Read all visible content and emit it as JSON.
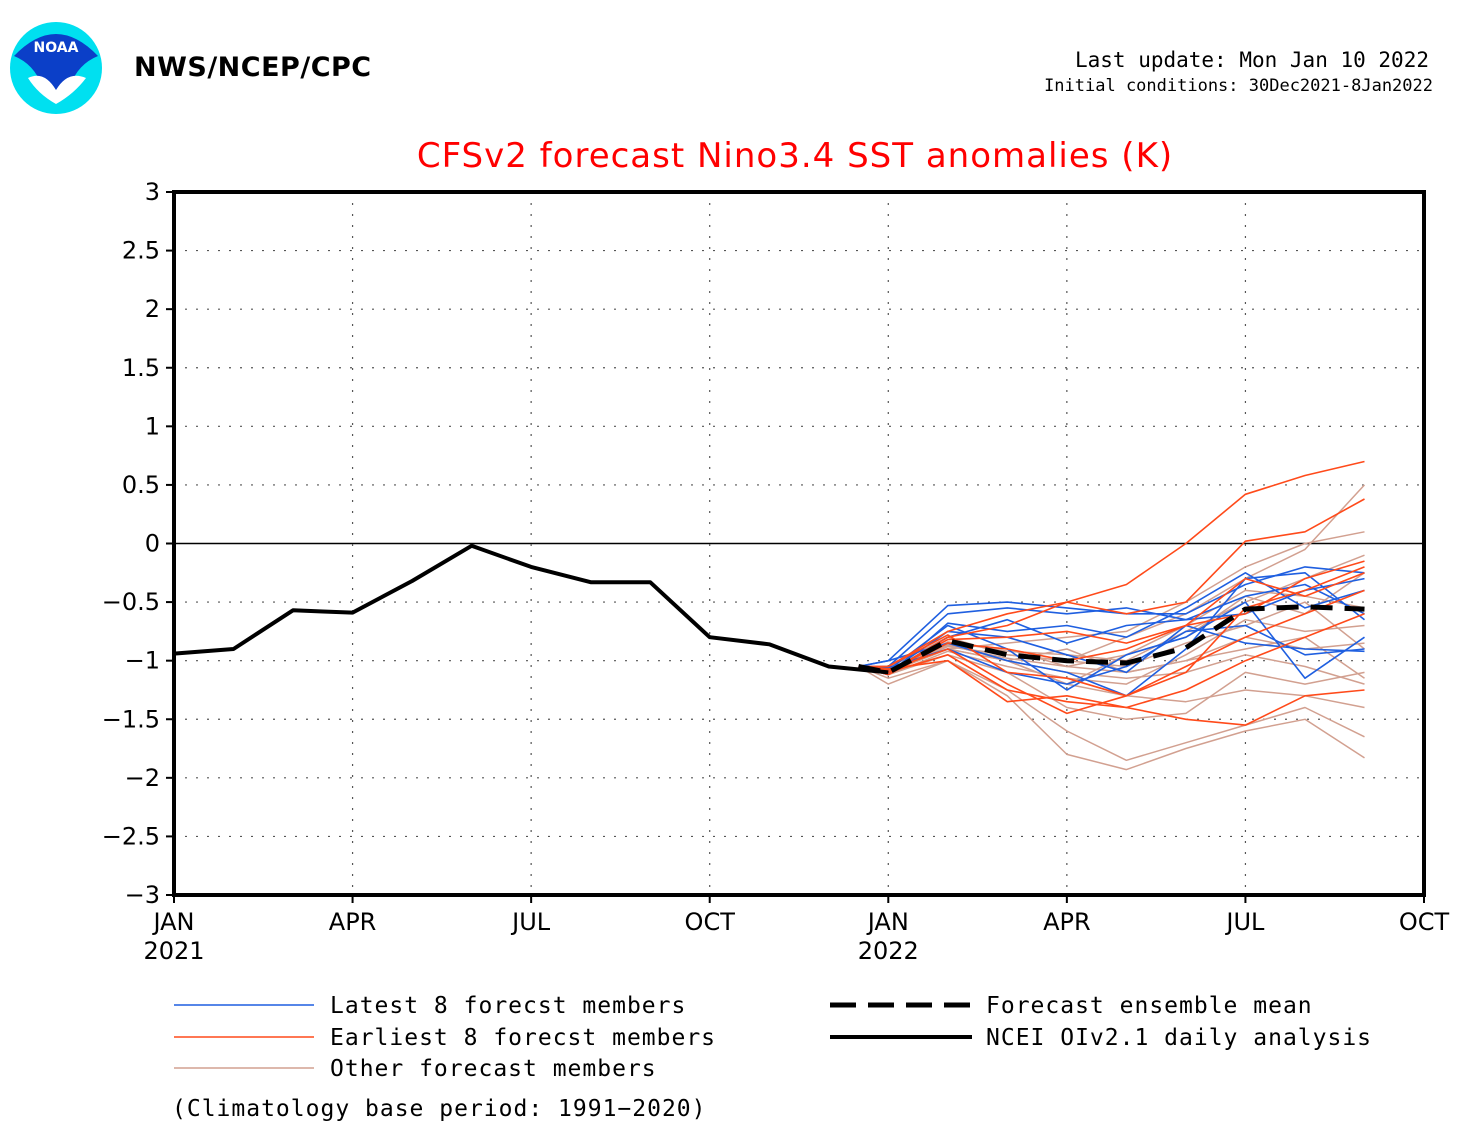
{
  "header": {
    "org": "NWS/NCEP/CPC",
    "last_update": "Last update: Mon Jan 10 2022",
    "initial_conditions": "Initial conditions: 30Dec2021-8Jan2022",
    "logo_text": "NOAA"
  },
  "chart_data": {
    "type": "line",
    "title": "CFSv2 forecast Nino3.4 SST anomalies (K)",
    "ylim": [
      -3,
      3
    ],
    "yticks": [
      3,
      2.5,
      2,
      1.5,
      1,
      0.5,
      0,
      -0.5,
      -1,
      -1.5,
      -2,
      -2.5,
      -3
    ],
    "ytick_labels": [
      "3",
      "2.5",
      "2",
      "1.5",
      "1",
      "0.5",
      "0",
      "−0.5",
      "−1",
      "−1.5",
      "−2",
      "−2.5",
      "−3"
    ],
    "xlim": [
      0,
      21
    ],
    "xticks": [
      {
        "x": 0,
        "label": "JAN",
        "sub": "2021"
      },
      {
        "x": 3,
        "label": "APR",
        "sub": ""
      },
      {
        "x": 6,
        "label": "JUL",
        "sub": ""
      },
      {
        "x": 9,
        "label": "OCT",
        "sub": ""
      },
      {
        "x": 12,
        "label": "JAN",
        "sub": "2022"
      },
      {
        "x": 15,
        "label": "APR",
        "sub": ""
      },
      {
        "x": 18,
        "label": "JUL",
        "sub": ""
      },
      {
        "x": 21,
        "label": "OCT",
        "sub": ""
      }
    ],
    "grid": true,
    "zero_line": true,
    "observed": {
      "name": "NCEI OIv2.1 daily analysis",
      "color": "#000000",
      "x": [
        0,
        1,
        2,
        2.5,
        3,
        4,
        5,
        6,
        7,
        8,
        9,
        10,
        11,
        12
      ],
      "y": [
        -0.94,
        -0.9,
        -0.57,
        -0.58,
        -0.59,
        -0.32,
        -0.02,
        -0.2,
        -0.33,
        -0.33,
        -0.8,
        -0.86,
        -1.05,
        -1.1
      ]
    },
    "ensemble_mean": {
      "name": "Forecast ensemble mean",
      "color": "#000000",
      "x": [
        11.5,
        12,
        13,
        14,
        15,
        16,
        17,
        18,
        19,
        20
      ],
      "y": [
        -1.05,
        -1.1,
        -0.83,
        -0.95,
        -1.0,
        -1.02,
        -0.89,
        -0.56,
        -0.54,
        -0.56
      ]
    },
    "members_x": [
      11.5,
      12,
      13,
      14,
      15,
      16,
      17,
      18,
      19,
      20
    ],
    "latest_members": {
      "name": "Latest 8 forecst members",
      "color": "#1f5fe0",
      "series": [
        [
          -1.05,
          -1.0,
          -0.53,
          -0.5,
          -0.55,
          -0.6,
          -0.6,
          -0.35,
          -0.2,
          -0.25
        ],
        [
          -1.05,
          -1.05,
          -0.6,
          -0.55,
          -0.6,
          -0.55,
          -0.65,
          -0.6,
          -0.4,
          -0.3
        ],
        [
          -1.05,
          -1.1,
          -0.75,
          -0.8,
          -0.95,
          -1.1,
          -0.7,
          -0.85,
          -0.9,
          -0.92
        ],
        [
          -1.05,
          -1.08,
          -0.7,
          -0.9,
          -1.25,
          -0.95,
          -0.8,
          -0.5,
          -1.15,
          -0.8
        ],
        [
          -1.05,
          -1.0,
          -0.85,
          -1.0,
          -1.1,
          -1.3,
          -0.9,
          -0.3,
          -0.25,
          -0.65
        ],
        [
          -1.05,
          -1.12,
          -0.68,
          -0.75,
          -0.7,
          -0.8,
          -0.55,
          -0.25,
          -0.55,
          -0.4
        ],
        [
          -1.05,
          -1.06,
          -0.9,
          -1.1,
          -1.2,
          -1.05,
          -0.75,
          -0.7,
          -0.95,
          -0.9
        ],
        [
          -1.05,
          -1.1,
          -0.8,
          -0.65,
          -0.85,
          -0.7,
          -0.65,
          -0.45,
          -0.35,
          -0.6
        ]
      ]
    },
    "earliest_members": {
      "name": "Earliest 8 forecst members",
      "color": "#ff4a1a",
      "series": [
        [
          -1.05,
          -1.05,
          -0.75,
          -0.6,
          -0.5,
          -0.35,
          0.0,
          0.42,
          0.58,
          0.7
        ],
        [
          -1.05,
          -1.1,
          -0.8,
          -0.7,
          -0.5,
          -0.6,
          -0.5,
          0.02,
          0.1,
          0.38
        ],
        [
          -1.05,
          -1.08,
          -0.9,
          -1.2,
          -1.45,
          -1.3,
          -1.1,
          -0.55,
          -0.4,
          -0.2
        ],
        [
          -1.05,
          -1.1,
          -0.95,
          -1.25,
          -1.35,
          -1.4,
          -1.5,
          -1.55,
          -1.3,
          -1.25
        ],
        [
          -1.05,
          -1.12,
          -0.85,
          -0.9,
          -1.0,
          -0.9,
          -0.7,
          -0.3,
          -0.45,
          -0.25
        ],
        [
          -1.05,
          -1.05,
          -0.78,
          -1.1,
          -1.15,
          -1.3,
          -1.05,
          -0.8,
          -0.6,
          -0.4
        ],
        [
          -1.05,
          -1.1,
          -0.82,
          -0.8,
          -0.75,
          -0.85,
          -0.7,
          -0.6,
          -0.3,
          -0.15
        ],
        [
          -1.05,
          -1.07,
          -1.0,
          -1.35,
          -1.3,
          -1.4,
          -1.25,
          -1.0,
          -0.8,
          -0.6
        ]
      ]
    },
    "other_members": {
      "name": "Other forecast members",
      "color": "#d2a090",
      "series": [
        [
          -1.05,
          -1.15,
          -1.0,
          -1.3,
          -1.8,
          -1.93,
          -1.75,
          -1.6,
          -1.5,
          -1.83
        ],
        [
          -1.05,
          -1.2,
          -1.0,
          -1.25,
          -1.6,
          -1.85,
          -1.7,
          -1.55,
          -1.4,
          -1.65
        ],
        [
          -1.05,
          -1.1,
          -0.9,
          -1.0,
          -1.2,
          -1.3,
          -1.35,
          -1.25,
          -1.3,
          -1.4
        ],
        [
          -1.05,
          -1.12,
          -0.95,
          -1.1,
          -1.4,
          -1.5,
          -1.45,
          -1.1,
          -1.2,
          -1.1
        ],
        [
          -1.05,
          -1.08,
          -0.85,
          -1.0,
          -0.9,
          -1.1,
          -1.0,
          -0.9,
          -0.8,
          -1.15
        ],
        [
          -1.05,
          -1.1,
          -0.88,
          -0.95,
          -1.0,
          -0.8,
          -0.6,
          -0.3,
          -0.05,
          0.5
        ],
        [
          -1.05,
          -1.1,
          -0.9,
          -0.85,
          -0.8,
          -0.75,
          -0.5,
          -0.2,
          0.0,
          0.1
        ],
        [
          -1.05,
          -1.09,
          -0.85,
          -0.9,
          -1.05,
          -0.95,
          -0.8,
          -0.45,
          -0.6,
          -0.25
        ],
        [
          -1.05,
          -1.12,
          -0.92,
          -1.05,
          -1.15,
          -1.2,
          -0.95,
          -0.65,
          -0.75,
          -0.7
        ],
        [
          -1.05,
          -1.06,
          -0.8,
          -0.95,
          -1.0,
          -1.05,
          -0.85,
          -0.7,
          -0.5,
          -0.9
        ],
        [
          -1.05,
          -1.1,
          -0.86,
          -1.0,
          -1.1,
          -1.15,
          -1.1,
          -0.95,
          -1.05,
          -1.2
        ],
        [
          -1.05,
          -1.08,
          -0.84,
          -0.92,
          -0.95,
          -1.0,
          -0.75,
          -0.5,
          -0.3,
          -0.1
        ],
        [
          -1.05,
          -1.1,
          -0.9,
          -1.0,
          -1.2,
          -0.95,
          -0.7,
          -0.4,
          -0.45,
          -0.55
        ],
        [
          -1.05,
          -1.07,
          -0.87,
          -0.98,
          -1.05,
          -1.1,
          -1.0,
          -0.8,
          -0.9,
          -0.85
        ]
      ]
    },
    "legend": [
      {
        "label": "Latest 8 forecst members",
        "color": "#1f5fe0",
        "style": "thin"
      },
      {
        "label": "Earliest 8 forecst members",
        "color": "#ff4a1a",
        "style": "thin"
      },
      {
        "label": "Other forecast members",
        "color": "#d2a090",
        "style": "thin"
      },
      {
        "label": "Forecast ensemble mean",
        "color": "#000000",
        "style": "dashed"
      },
      {
        "label": "NCEI OIv2.1 daily analysis",
        "color": "#000000",
        "style": "thick"
      }
    ],
    "footnote": "(Climatology base period: 1991−2020)"
  }
}
